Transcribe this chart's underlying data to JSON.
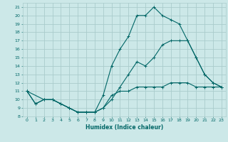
{
  "title": "",
  "xlabel": "Humidex (Indice chaleur)",
  "xlim": [
    -0.5,
    23.5
  ],
  "ylim": [
    8,
    21.5
  ],
  "yticks": [
    8,
    9,
    10,
    11,
    12,
    13,
    14,
    15,
    16,
    17,
    18,
    19,
    20,
    21
  ],
  "xticks": [
    0,
    1,
    2,
    3,
    4,
    5,
    6,
    7,
    8,
    9,
    10,
    11,
    12,
    13,
    14,
    15,
    16,
    17,
    18,
    19,
    20,
    21,
    22,
    23
  ],
  "bg_color": "#cce8e8",
  "grid_color": "#aacccc",
  "line_color": "#006666",
  "line1_x": [
    0,
    1,
    2,
    3,
    4,
    5,
    6,
    7,
    8,
    9,
    10,
    11,
    12,
    13,
    14,
    15,
    16,
    17,
    18,
    19,
    20,
    21,
    22,
    23
  ],
  "line1_y": [
    11,
    9.5,
    10,
    10,
    9.5,
    9,
    8.5,
    8.5,
    8.5,
    9,
    10.5,
    11,
    11,
    11.5,
    11.5,
    11.5,
    11.5,
    12,
    12,
    12,
    11.5,
    11.5,
    11.5,
    11.5
  ],
  "line2_x": [
    0,
    1,
    2,
    3,
    4,
    5,
    6,
    7,
    8,
    9,
    10,
    11,
    12,
    13,
    14,
    15,
    16,
    17,
    18,
    19,
    20,
    21,
    22,
    23
  ],
  "line2_y": [
    11,
    9.5,
    10,
    10,
    9.5,
    9,
    8.5,
    8.5,
    8.5,
    10.5,
    14,
    16,
    17.5,
    20,
    20,
    21,
    20,
    19.5,
    19,
    17,
    15,
    13,
    12,
    11.5
  ],
  "line3_x": [
    0,
    2,
    3,
    4,
    5,
    6,
    7,
    8,
    9,
    10,
    11,
    12,
    13,
    14,
    15,
    16,
    17,
    18,
    19,
    20,
    21,
    22,
    23
  ],
  "line3_y": [
    11,
    10,
    10,
    9.5,
    9,
    8.5,
    8.5,
    8.5,
    9,
    10,
    11.5,
    13,
    14.5,
    14,
    15,
    16.5,
    17,
    17,
    17,
    15,
    13,
    12,
    11.5
  ],
  "tick_fontsize": 4.5,
  "xlabel_fontsize": 5.5,
  "linewidth": 0.8,
  "markersize": 3.0
}
